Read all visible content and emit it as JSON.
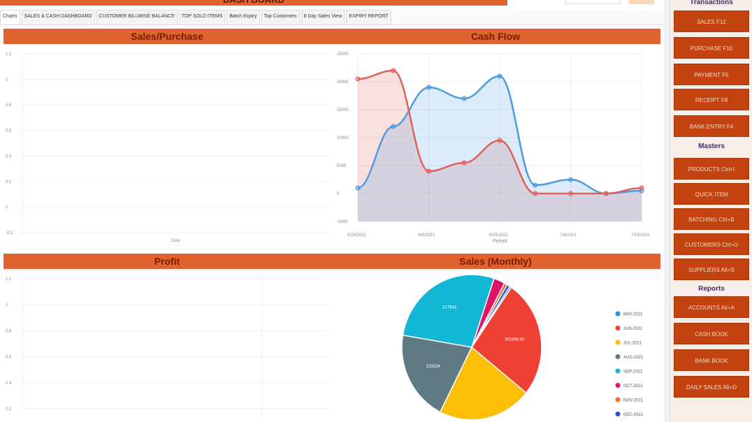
{
  "header": {
    "title": "DASH BOARD"
  },
  "tabs": [
    "Charts",
    "SALES & CASH DASHBOARD",
    "CUSTOMER BILLWISE BALANCE",
    "TOP SOLD ITEMS",
    "Batch Expiry",
    "Top Customers",
    "8 Day Sales View",
    "EXPIRY REPORT"
  ],
  "sections": {
    "sales_purchase": "Sales/Purchase",
    "cash_flow": "Cash Flow",
    "profit": "Profit",
    "sales_monthly": "Sales (Monthly)"
  },
  "sidebar": {
    "transactions_heading": "Transactions",
    "transactions": [
      "SALES F12",
      "PURCHASE F10",
      "PAYMENT F5",
      "RECEIPT F8",
      "BANK ENTRY F4"
    ],
    "masters_heading": "Masters",
    "masters": [
      "PRODUCTS Ctrl+I",
      "QUICK ITEM",
      "BATCHING Ctrl+B",
      "CUSTOMERS Ctrl+U",
      "SUPPLIERS Alt+S"
    ],
    "reports_heading": "Reports",
    "reports": [
      "ACCOUNTS Alt+A",
      "CASH BOOK",
      "BANK BOOK",
      "DAILY SALES Alt+D"
    ]
  },
  "chart_data": [
    {
      "type": "line",
      "title": "Sales/Purchase",
      "xlabel": "Date",
      "ylabel": "",
      "yticks": [
        "1.2",
        "1",
        "0.8",
        "0.6",
        "0.4",
        "0.2",
        "0",
        "-0.2"
      ],
      "ylim": [
        -0.2,
        1.2
      ],
      "series": []
    },
    {
      "type": "area",
      "title": "Cash Flow",
      "xlabel": "Period",
      "ylim": [
        -5000,
        25000
      ],
      "yticks": [
        "25000",
        "20000",
        "15000",
        "10000",
        "5000",
        "0",
        "-5000"
      ],
      "xticks": [
        "5/24/2021",
        "6/8/2021",
        "6/23/2021",
        "7/8/2021",
        "7/23/2021"
      ],
      "series": [
        {
          "color": "#4a9be0",
          "values": [
            1000,
            12000,
            19000,
            17000,
            21000,
            1500,
            2500,
            0,
            500
          ]
        },
        {
          "color": "#e0605a",
          "values": [
            20500,
            22000,
            4000,
            5500,
            9500,
            0,
            0,
            0,
            1000
          ]
        }
      ]
    },
    {
      "type": "line",
      "title": "Profit",
      "yticks": [
        "1.2",
        "1",
        "0.8",
        "0.6",
        "0.4",
        "0.2"
      ],
      "ylim": [
        0,
        1.2
      ],
      "series": []
    },
    {
      "type": "pie",
      "title": "Sales (Monthly)",
      "categories": [
        "MAY-2021",
        "JUN-2021",
        "JUL-2021",
        "AUG-2021",
        "SEP-2021",
        "OCT-2021",
        "NOV-2021",
        "DEC-2021"
      ],
      "colors": [
        "#2f8fe0",
        "#ee4035",
        "#fbbf07",
        "#5f7a85",
        "#12b7d4",
        "#e0136a",
        "#fb6a2c",
        "#2b4fd0"
      ],
      "values": [
        5000,
        302398.5,
        250000,
        233024,
        317643,
        30000,
        8000,
        8000
      ],
      "data_labels": [
        "",
        "302398.50",
        "",
        "233024",
        "317643",
        "",
        "",
        ""
      ],
      "legend": "right"
    }
  ]
}
